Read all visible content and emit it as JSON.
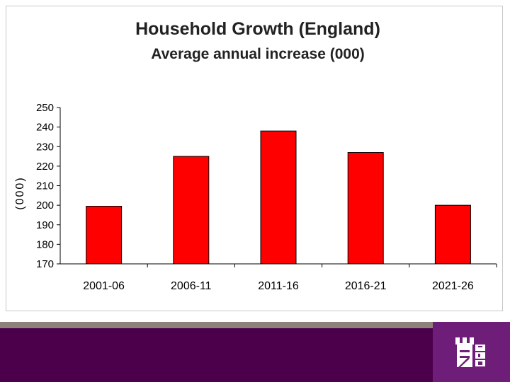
{
  "chart_data": {
    "type": "bar",
    "title": "Household Growth (England)",
    "subtitle": "Average annual increase (000)",
    "ylabel": "(000)",
    "xlabel": "",
    "categories": [
      "2001-06",
      "2006-11",
      "2011-16",
      "2016-21",
      "2021-26"
    ],
    "values": [
      199.5,
      225,
      238,
      227,
      200
    ],
    "ylim": [
      170,
      250
    ],
    "yticks": [
      170,
      180,
      190,
      200,
      210,
      220,
      230,
      240,
      250
    ],
    "grid": false,
    "legend": "none",
    "bar_color": "#ff0000",
    "bar_outline": "#000000"
  },
  "footer": {
    "band_color": "#8c8279",
    "bar_color": "#4c004c",
    "logo_bg": "#6e1e78",
    "logo_icon": "hbf-castle-logo"
  }
}
